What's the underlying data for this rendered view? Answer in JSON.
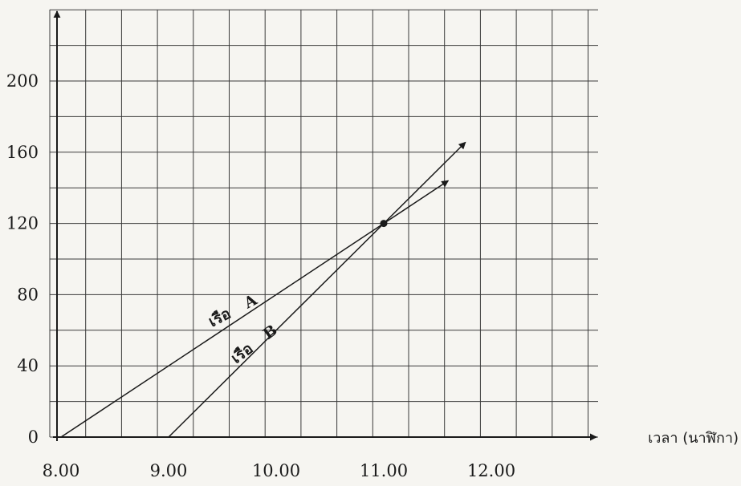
{
  "chart_data": {
    "type": "line",
    "title": "",
    "xlabel": "เวลา (นาฬิกา)",
    "ylabel": "",
    "x_tick_labels": [
      "8.00",
      "9.00",
      "10.00",
      "11.00",
      "12.00"
    ],
    "x_ticks": [
      8,
      9,
      10,
      11,
      12
    ],
    "y_ticks": [
      0,
      40,
      80,
      120,
      160,
      200
    ],
    "xlim": [
      8,
      12.9
    ],
    "ylim": [
      0,
      235
    ],
    "grid": true,
    "series": [
      {
        "name": "เรือ A",
        "label_main": "เรือ",
        "label_letter": "A",
        "x": [
          8,
          11,
          11.6
        ],
        "y": [
          0,
          120,
          144
        ]
      },
      {
        "name": "เรือ B",
        "label_main": "เรือ",
        "label_letter": "B",
        "x": [
          9,
          11,
          11.76
        ],
        "y": [
          0,
          120,
          165.6
        ]
      }
    ],
    "annotations": [
      {
        "type": "intersection-point",
        "x": 11,
        "y": 120
      }
    ],
    "colors": {
      "line": "#1a1a1a",
      "grid": "#3a3a3a"
    }
  }
}
